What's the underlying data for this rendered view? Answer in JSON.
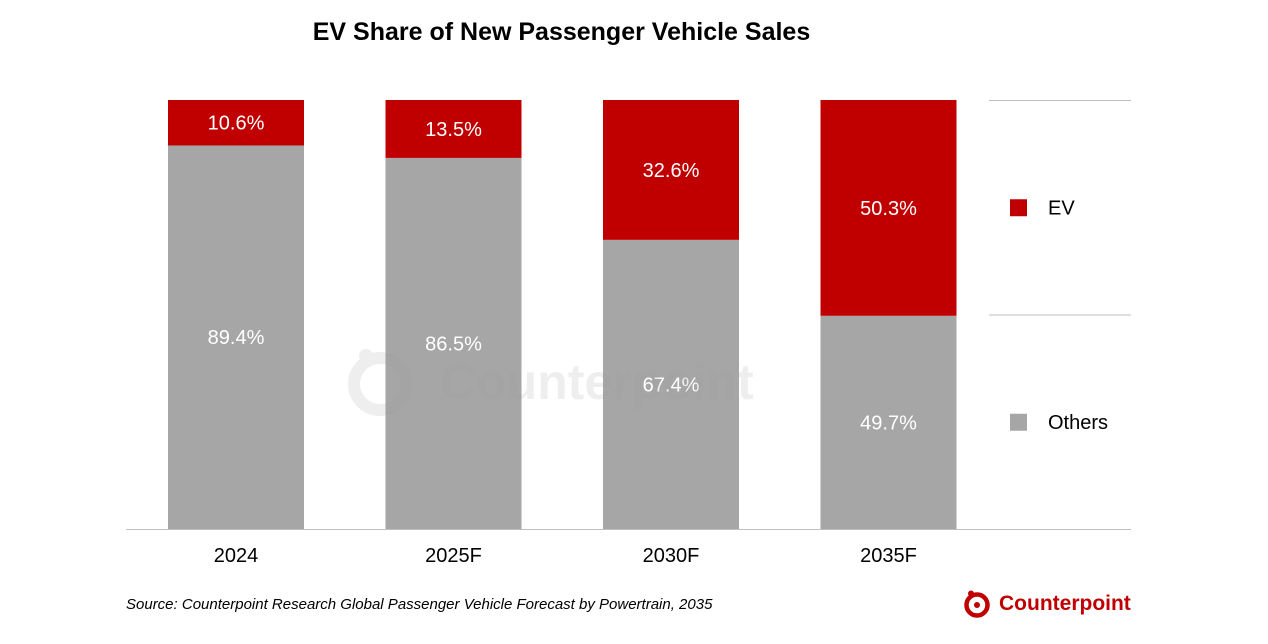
{
  "chart_data": {
    "type": "bar",
    "stacked": true,
    "title": "EV Share of New Passenger Vehicle Sales",
    "categories": [
      "2024",
      "2025F",
      "2030F",
      "2035F"
    ],
    "series": [
      {
        "name": "Others",
        "color": "#a6a6a6",
        "values": [
          89.4,
          86.5,
          67.4,
          49.7
        ],
        "labels": [
          "89.4%",
          "86.5%",
          "67.4%",
          "49.7%"
        ]
      },
      {
        "name": "EV",
        "color": "#c00000",
        "values": [
          10.6,
          13.5,
          32.6,
          50.3
        ],
        "labels": [
          "10.6%",
          "13.5%",
          "32.6%",
          "50.3%"
        ]
      }
    ],
    "ylim": [
      0,
      100
    ],
    "unit": "%",
    "legend_position": "right",
    "grid": false
  },
  "source_note": "Source: Counterpoint Research Global Passenger Vehicle Forecast by Powertrain, 2035",
  "brand": {
    "name": "Counterpoint",
    "color": "#c00000"
  },
  "watermark": {
    "text": "Counterpoint"
  }
}
